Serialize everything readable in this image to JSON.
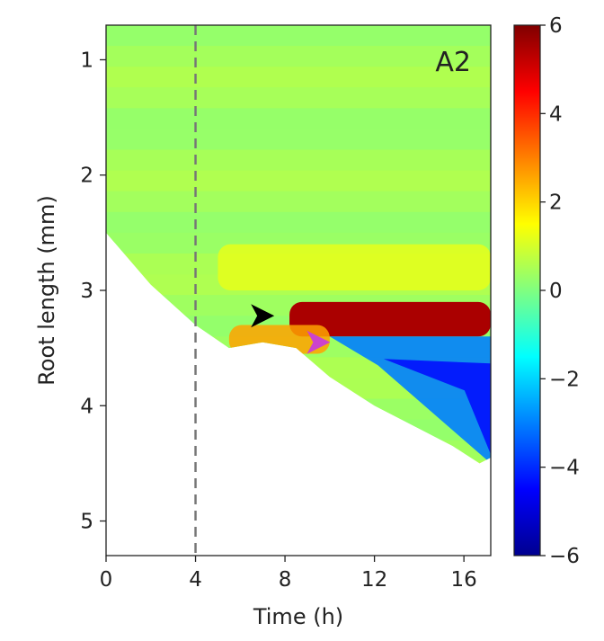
{
  "chart_data": {
    "type": "heatmap",
    "panel_label": "A2",
    "xlabel": "Time (h)",
    "ylabel": "Root length (mm)",
    "xlim": [
      0,
      17.2
    ],
    "ylim": [
      5.3,
      0.7
    ],
    "xticks": [
      0,
      4,
      8,
      12,
      16
    ],
    "yticks": [
      1,
      2,
      3,
      4,
      5
    ],
    "reference_line_x": 4,
    "colorbar": {
      "range": [
        -6,
        6
      ],
      "ticks": [
        6,
        4,
        2,
        0,
        -2,
        -4,
        -6
      ],
      "tick_labels": [
        "6",
        "4",
        "2",
        "0",
        "−2",
        "−4",
        "−6"
      ],
      "colormap": "jet"
    },
    "root_tip_boundary": [
      {
        "t": 0,
        "len": 2.5
      },
      {
        "t": 2,
        "len": 2.95
      },
      {
        "t": 4,
        "len": 3.3
      },
      {
        "t": 5.5,
        "len": 3.5
      },
      {
        "t": 7,
        "len": 3.45
      },
      {
        "t": 8.5,
        "len": 3.5
      },
      {
        "t": 10,
        "len": 3.75
      },
      {
        "t": 12,
        "len": 4.0
      },
      {
        "t": 14,
        "len": 4.2
      },
      {
        "t": 15.5,
        "len": 4.35
      },
      {
        "t": 16.7,
        "len": 4.5
      },
      {
        "t": 17.2,
        "len": 4.45
      }
    ],
    "features": [
      {
        "t_start": 8.2,
        "t_end": 17.2,
        "len_start": 3.1,
        "len_end": 3.4,
        "value": 5.5
      },
      {
        "t_start": 5.5,
        "t_end": 10.0,
        "len_start": 3.3,
        "len_end": 3.55,
        "value": 2.6
      },
      {
        "t_start": 10.0,
        "t_end": 17.2,
        "len_start": 3.4,
        "len_end": 4.5,
        "value": -3.0
      },
      {
        "t_start": 5.0,
        "t_end": 17.2,
        "len_start": 2.6,
        "len_end": 3.0,
        "value": 1.2
      }
    ],
    "markers": [
      {
        "t": 7.0,
        "len": 3.22,
        "color": "#000000",
        "direction": "right"
      },
      {
        "t": 9.5,
        "len": 3.45,
        "color": "#cc44cc",
        "direction": "right"
      }
    ]
  }
}
